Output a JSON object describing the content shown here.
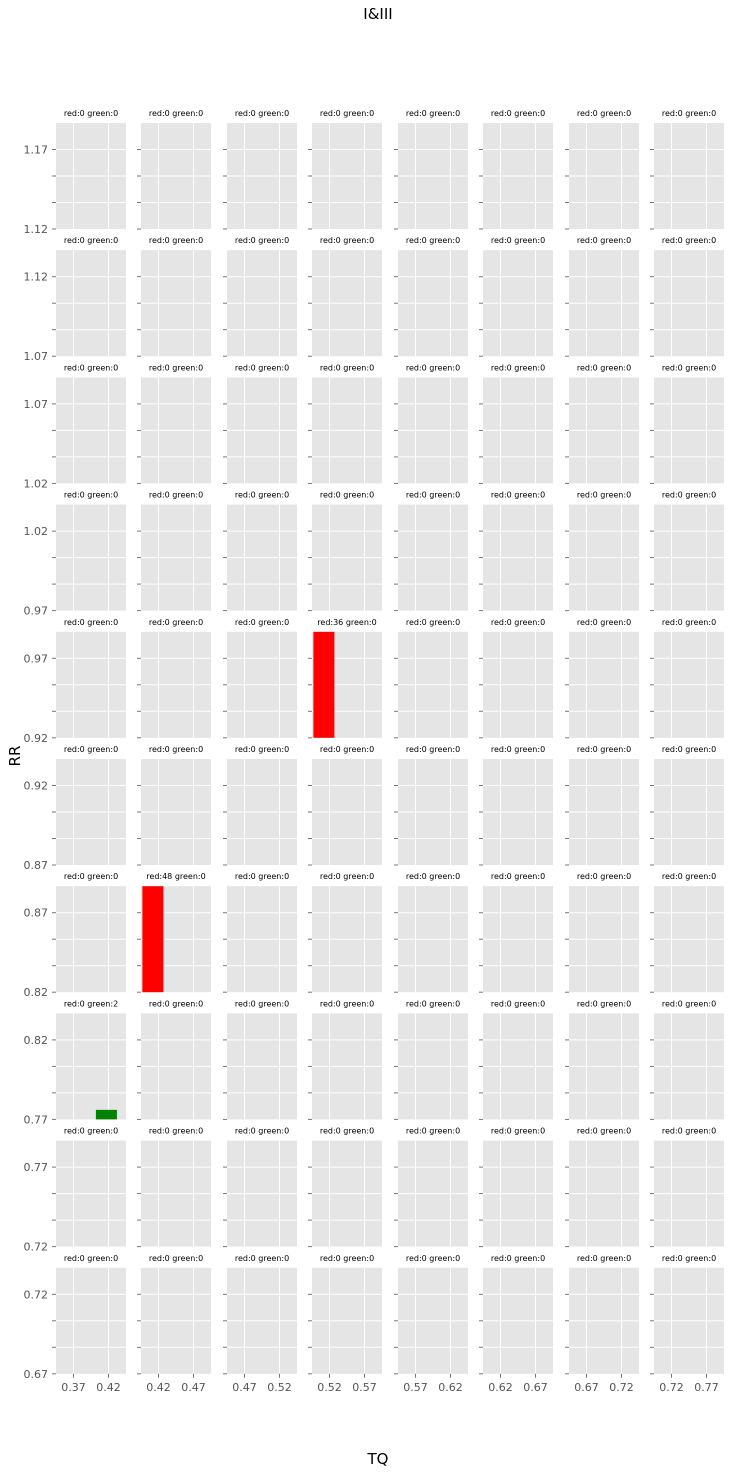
{
  "chart_data": {
    "type": "bar",
    "title": "I&III",
    "xlabel": "TQ",
    "ylabel": "RR",
    "grid": true,
    "colors": {
      "panel_bg": "#e5e5e5",
      "grid": "#ffffff",
      "red": "#ff0000",
      "green": "#008000",
      "tick_text": "#555555"
    },
    "columns": [
      {
        "xlim": [
          0.345,
          0.445
        ],
        "xticks": [
          "0.37",
          "0.42"
        ]
      },
      {
        "xlim": [
          0.395,
          0.495
        ],
        "xticks": [
          "0.42",
          "0.47"
        ]
      },
      {
        "xlim": [
          0.445,
          0.545
        ],
        "xticks": [
          "0.47",
          "0.52"
        ]
      },
      {
        "xlim": [
          0.495,
          0.595
        ],
        "xticks": [
          "0.52",
          "0.57"
        ]
      },
      {
        "xlim": [
          0.545,
          0.645
        ],
        "xticks": [
          "0.57",
          "0.62"
        ]
      },
      {
        "xlim": [
          0.595,
          0.695
        ],
        "xticks": [
          "0.62",
          "0.67"
        ]
      },
      {
        "xlim": [
          0.645,
          0.745
        ],
        "xticks": [
          "0.67",
          "0.72"
        ]
      },
      {
        "xlim": [
          0.695,
          0.795
        ],
        "xticks": [
          "0.72",
          "0.77"
        ]
      }
    ],
    "rows": [
      {
        "ylim": [
          1.12,
          1.17
        ],
        "yticks": [
          "1.17",
          "1.12"
        ]
      },
      {
        "ylim": [
          1.07,
          1.12
        ],
        "yticks": [
          "1.12",
          "1.07"
        ]
      },
      {
        "ylim": [
          1.02,
          1.07
        ],
        "yticks": [
          "1.07",
          "1.02"
        ]
      },
      {
        "ylim": [
          0.97,
          1.02
        ],
        "yticks": [
          "1.02",
          "0.97"
        ]
      },
      {
        "ylim": [
          0.92,
          0.97
        ],
        "yticks": [
          "0.97",
          "0.92"
        ]
      },
      {
        "ylim": [
          0.87,
          0.92
        ],
        "yticks": [
          "0.92",
          "0.87"
        ]
      },
      {
        "ylim": [
          0.82,
          0.87
        ],
        "yticks": [
          "0.87",
          "0.82"
        ]
      },
      {
        "ylim": [
          0.77,
          0.82
        ],
        "yticks": [
          "0.82",
          "0.77"
        ]
      },
      {
        "ylim": [
          0.72,
          0.77
        ],
        "yticks": [
          "0.77",
          "0.72"
        ]
      },
      {
        "ylim": [
          0.67,
          0.72
        ],
        "yticks": [
          "0.72",
          "0.67"
        ]
      }
    ],
    "panels": [
      [
        "red:0 green:0",
        "red:0 green:0",
        "red:0 green:0",
        "red:0 green:0",
        "red:0 green:0",
        "red:0 green:0",
        "red:0 green:0",
        "red:0 green:0"
      ],
      [
        "red:0 green:0",
        "red:0 green:0",
        "red:0 green:0",
        "red:0 green:0",
        "red:0 green:0",
        "red:0 green:0",
        "red:0 green:0",
        "red:0 green:0"
      ],
      [
        "red:0 green:0",
        "red:0 green:0",
        "red:0 green:0",
        "red:0 green:0",
        "red:0 green:0",
        "red:0 green:0",
        "red:0 green:0",
        "red:0 green:0"
      ],
      [
        "red:0 green:0",
        "red:0 green:0",
        "red:0 green:0",
        "red:0 green:0",
        "red:0 green:0",
        "red:0 green:0",
        "red:0 green:0",
        "red:0 green:0"
      ],
      [
        "red:0 green:0",
        "red:0 green:0",
        "red:0 green:0",
        "red:36 green:0",
        "red:0 green:0",
        "red:0 green:0",
        "red:0 green:0",
        "red:0 green:0"
      ],
      [
        "red:0 green:0",
        "red:0 green:0",
        "red:0 green:0",
        "red:0 green:0",
        "red:0 green:0",
        "red:0 green:0",
        "red:0 green:0",
        "red:0 green:0"
      ],
      [
        "red:0 green:0",
        "red:48 green:0",
        "red:0 green:0",
        "red:0 green:0",
        "red:0 green:0",
        "red:0 green:0",
        "red:0 green:0",
        "red:0 green:0"
      ],
      [
        "red:0 green:2",
        "red:0 green:0",
        "red:0 green:0",
        "red:0 green:0",
        "red:0 green:0",
        "red:0 green:0",
        "red:0 green:0",
        "red:0 green:0"
      ],
      [
        "red:0 green:0",
        "red:0 green:0",
        "red:0 green:0",
        "red:0 green:0",
        "red:0 green:0",
        "red:0 green:0",
        "red:0 green:0",
        "red:0 green:0"
      ],
      [
        "red:0 green:0",
        "red:0 green:0",
        "red:0 green:0",
        "red:0 green:0",
        "red:0 green:0",
        "red:0 green:0",
        "red:0 green:0",
        "red:0 green:0"
      ]
    ],
    "bars": [
      {
        "row": 4,
        "col": 3,
        "color": "red",
        "x0": 0.497,
        "x1": 0.527,
        "value": 36,
        "value_max": 36
      },
      {
        "row": 6,
        "col": 1,
        "color": "red",
        "x0": 0.397,
        "x1": 0.427,
        "value": 48,
        "value_max": 48
      },
      {
        "row": 7,
        "col": 0,
        "color": "green",
        "x0": 0.402,
        "x1": 0.432,
        "value": 2,
        "value_max": 2,
        "fill_fraction": 0.09
      }
    ]
  }
}
